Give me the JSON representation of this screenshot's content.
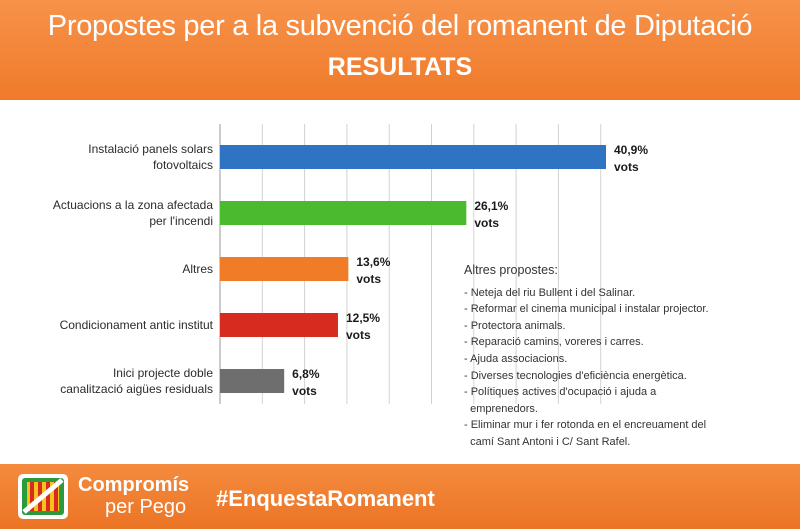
{
  "header": {
    "title": "Propostes per a la subvenció del romanent de Diputació",
    "subtitle": "RESULTATS"
  },
  "chart_data": {
    "type": "bar",
    "orientation": "horizontal",
    "grid": true,
    "categories": [
      [
        "Instalació panels solars",
        "fotovoltaics"
      ],
      [
        "Actuacions a la zona afectada",
        "per l'incendi"
      ],
      [
        "Altres"
      ],
      [
        "Condicionament antic institut"
      ],
      [
        "Inici projecte doble",
        "canalització aigües residuals"
      ]
    ],
    "values": [
      40.9,
      26.1,
      13.6,
      12.5,
      6.8
    ],
    "value_labels": [
      "40,9%",
      "26,1%",
      "13,6%",
      "12,5%",
      "6,8%"
    ],
    "unit_label": "vots",
    "colors": [
      "#2f73c3",
      "#4cba2e",
      "#f07c27",
      "#d62b1e",
      "#6e6e6e"
    ],
    "xlim": [
      0,
      40.9
    ]
  },
  "notes": {
    "title": "Altres propostes:",
    "items": [
      "- Neteja del riu Bullent i del Salinar.",
      "- Reformar el cinema municipal i instalar projector.",
      "- Protectora animals.",
      "- Reparació camins, voreres i carres.",
      "- Ajuda associacions.",
      "- Diverses tecnologies d'eficiència energètica.",
      "- Polítiques actives d'ocupació i ajuda a",
      "  emprenedors.",
      "- Eliminar mur i fer rotonda en el encreuament del",
      "  camí Sant Antoni i C/ Sant Rafel."
    ]
  },
  "footer": {
    "brand_line1": "Compromís",
    "brand_line2": "per Pego",
    "hashtag": "#EnquestaRomanent",
    "logo_colors": [
      "#f7c21c",
      "#d62b1e",
      "#2a9a3c",
      "#ffffff"
    ]
  }
}
